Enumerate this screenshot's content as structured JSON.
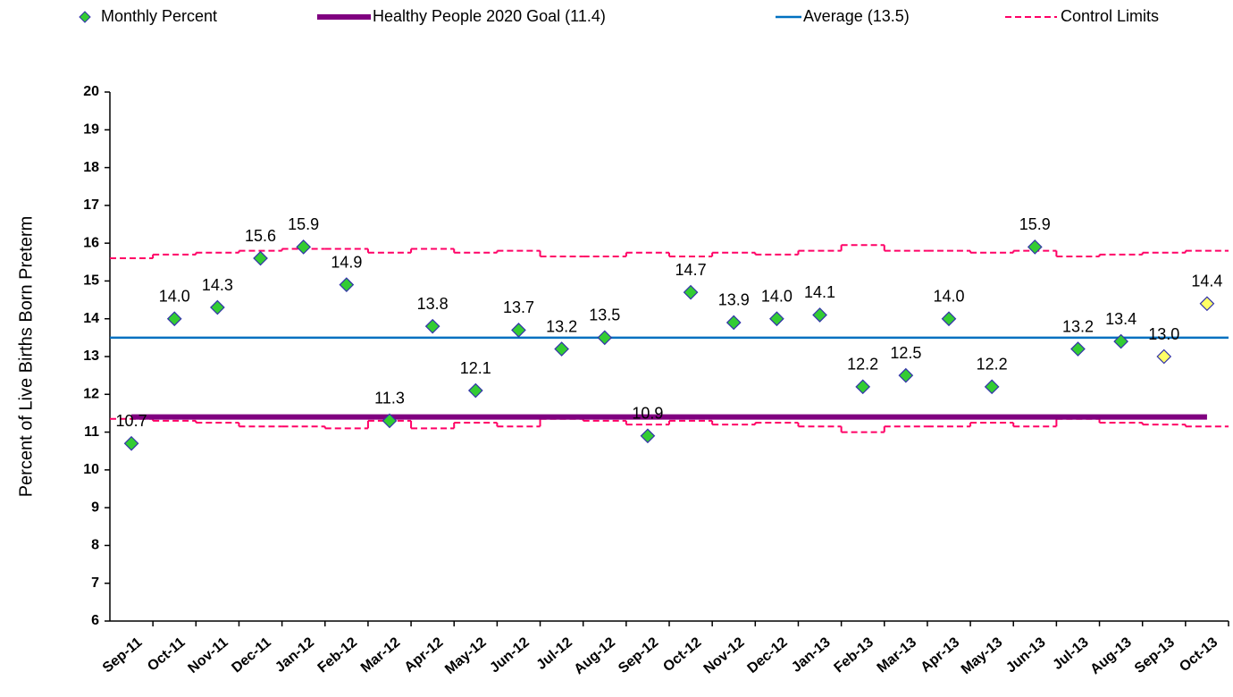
{
  "chart_data": {
    "type": "control",
    "y_label": "Percent of Live Births Born Preterm",
    "categories": [
      "Sep-11",
      "Oct-11",
      "Nov-11",
      "Dec-11",
      "Jan-12",
      "Feb-12",
      "Mar-12",
      "Apr-12",
      "May-12",
      "Jun-12",
      "Jul-12",
      "Aug-12",
      "Sep-12",
      "Oct-12",
      "Nov-12",
      "Dec-12",
      "Jan-13",
      "Feb-13",
      "Mar-13",
      "Apr-13",
      "May-13",
      "Jun-13",
      "Jul-13",
      "Aug-13",
      "Sep-13",
      "Oct-13"
    ],
    "ylim": [
      6,
      20
    ],
    "yticks": [
      6,
      7,
      8,
      9,
      10,
      11,
      12,
      13,
      14,
      15,
      16,
      17,
      18,
      19,
      20
    ],
    "series": [
      {
        "name": "Monthly Percent",
        "color": "#33cc33",
        "edge_color": "#3333aa",
        "values": [
          10.7,
          14.0,
          14.3,
          15.6,
          15.9,
          14.9,
          11.3,
          13.8,
          12.1,
          13.7,
          13.2,
          13.5,
          10.9,
          14.7,
          13.9,
          14.0,
          14.1,
          12.2,
          12.5,
          14.0,
          12.2,
          15.9,
          13.2,
          13.4,
          13.0,
          14.4
        ],
        "value_labels": [
          "10.7",
          "14.0",
          "14.3",
          "15.6",
          "15.9",
          "14.9",
          "11.3",
          "13.8",
          "12.1",
          "13.7",
          "13.2",
          "13.5",
          "10.9",
          "14.7",
          "13.9",
          "14.0",
          "14.1",
          "12.2",
          "12.5",
          "14.0",
          "12.2",
          "15.9",
          "13.2",
          "13.4",
          "13.0",
          "14.4"
        ],
        "colors": [
          "#33cc33",
          "#33cc33",
          "#33cc33",
          "#33cc33",
          "#33cc33",
          "#33cc33",
          "#33cc33",
          "#33cc33",
          "#33cc33",
          "#33cc33",
          "#33cc33",
          "#33cc33",
          "#33cc33",
          "#33cc33",
          "#33cc33",
          "#33cc33",
          "#33cc33",
          "#33cc33",
          "#33cc33",
          "#33cc33",
          "#33cc33",
          "#33cc33",
          "#33cc33",
          "#33cc33",
          "#ffff66",
          "#ffff66"
        ]
      },
      {
        "name": "Healthy People 2020 Goal (11.4)",
        "color": "#800080",
        "value": 11.4
      },
      {
        "name": "Average (13.5)",
        "color": "#0070c0",
        "value": 13.5
      },
      {
        "name": "Control Limits",
        "color": "#ff0066",
        "upper": [
          15.6,
          15.7,
          15.75,
          15.8,
          15.85,
          15.85,
          15.75,
          15.85,
          15.75,
          15.8,
          15.65,
          15.65,
          15.75,
          15.65,
          15.75,
          15.7,
          15.8,
          15.95,
          15.8,
          15.8,
          15.75,
          15.8,
          15.65,
          15.7,
          15.75,
          15.8
        ],
        "lower": [
          11.35,
          11.3,
          11.25,
          11.15,
          11.15,
          11.1,
          11.3,
          11.1,
          11.25,
          11.15,
          11.35,
          11.3,
          11.2,
          11.3,
          11.2,
          11.25,
          11.15,
          11.0,
          11.15,
          11.15,
          11.25,
          11.15,
          11.35,
          11.25,
          11.2,
          11.15
        ]
      }
    ]
  }
}
